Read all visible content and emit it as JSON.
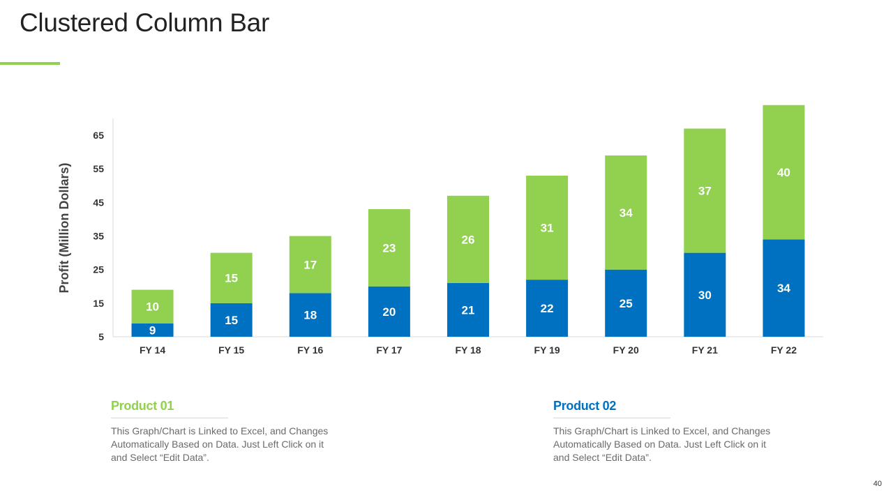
{
  "slide": {
    "title": "Clustered Column Bar",
    "page_number": "40"
  },
  "colors": {
    "accent_green": "#92D050",
    "accent_blue": "#0070C0",
    "title_text": "#222222",
    "body_text": "#6a6a6a"
  },
  "legend": [
    {
      "title": "Product 01",
      "color": "#92D050",
      "description": "This Graph/Chart is Linked to Excel, and Changes Automatically  Based on Data. Just Left Click on it and Select “Edit Data”."
    },
    {
      "title": "Product 02",
      "color": "#0070C0",
      "description": "This Graph/Chart is Linked to Excel, and Changes Automatically  Based on Data. Just Left Click on it and Select “Edit Data”."
    }
  ],
  "chart_data": {
    "type": "bar",
    "stacked": true,
    "title": "",
    "xlabel": "",
    "ylabel": "Profit  (Million  Dollars)",
    "categories": [
      "FY 14",
      "FY 15",
      "FY 16",
      "FY 17",
      "FY 18",
      "FY 19",
      "FY 20",
      "FY 21",
      "FY 22"
    ],
    "y_ticks": [
      5,
      15,
      25,
      35,
      45,
      55,
      65
    ],
    "ylim": [
      5,
      70
    ],
    "grid": false,
    "series": [
      {
        "name": "Product 02",
        "color": "#0070C0",
        "values": [
          9,
          15,
          18,
          20,
          21,
          22,
          25,
          30,
          34
        ]
      },
      {
        "name": "Product 01",
        "color": "#92D050",
        "values": [
          10,
          15,
          17,
          23,
          26,
          31,
          34,
          37,
          40
        ]
      }
    ]
  }
}
